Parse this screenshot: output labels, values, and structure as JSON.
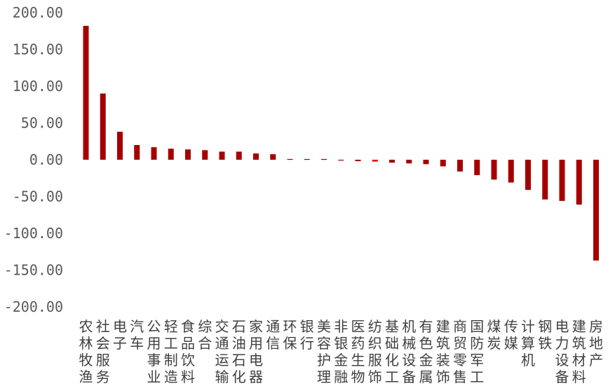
{
  "chart_data": {
    "type": "bar",
    "categories": [
      "农林牧渔",
      "社会服务",
      "电子",
      "汽车",
      "公用事业",
      "轻工制造",
      "食品饮料",
      "综合",
      "交通运输",
      "石油石化",
      "家用电器",
      "通信",
      "环保",
      "银行",
      "美容护理",
      "非银金融",
      "医药生物",
      "纺织服饰",
      "基础化工",
      "机械设备",
      "有色金属",
      "建筑装饰",
      "商贸零售",
      "国防军工",
      "煤炭",
      "传媒",
      "计算机",
      "钢铁",
      "电力设备",
      "建筑材料",
      "房地产"
    ],
    "values": [
      182,
      90,
      38,
      20,
      17,
      15,
      14,
      13,
      11,
      11,
      8.5,
      7.5,
      1,
      1,
      1,
      -1,
      -2,
      -2.5,
      -4,
      -5,
      -6,
      -9,
      -16,
      -21,
      -27,
      -31,
      -41,
      -54,
      -56,
      -61,
      -137
    ],
    "colors": {
      "default": "#a50000",
      "highlight": "#e60000"
    },
    "highlight_index": 17,
    "yticks": [
      "200.00",
      "150.00",
      "100.00",
      "50.00",
      "0.00",
      "-50.00",
      "-100.00",
      "-150.00",
      "-200.00"
    ],
    "ylim": [
      -200,
      200
    ],
    "title": "",
    "xlabel": "",
    "ylabel": ""
  }
}
